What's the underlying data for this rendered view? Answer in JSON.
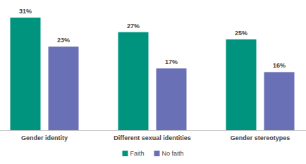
{
  "chart_data": {
    "type": "bar",
    "categories": [
      "Gender identity",
      "Different sexual identities",
      "Gender stereotypes"
    ],
    "series": [
      {
        "name": "Faith",
        "color": "#00947e",
        "values": [
          31,
          27,
          25
        ],
        "value_labels": [
          "31%",
          "27%",
          "25%"
        ]
      },
      {
        "name": "No faith",
        "color": "#6a70b5",
        "values": [
          23,
          17,
          16
        ],
        "value_labels": [
          "23%",
          "17%",
          "16%"
        ]
      }
    ],
    "ylim": [
      0,
      31
    ],
    "data_labels": true,
    "tick_labels": "x",
    "legend": "bottom"
  }
}
